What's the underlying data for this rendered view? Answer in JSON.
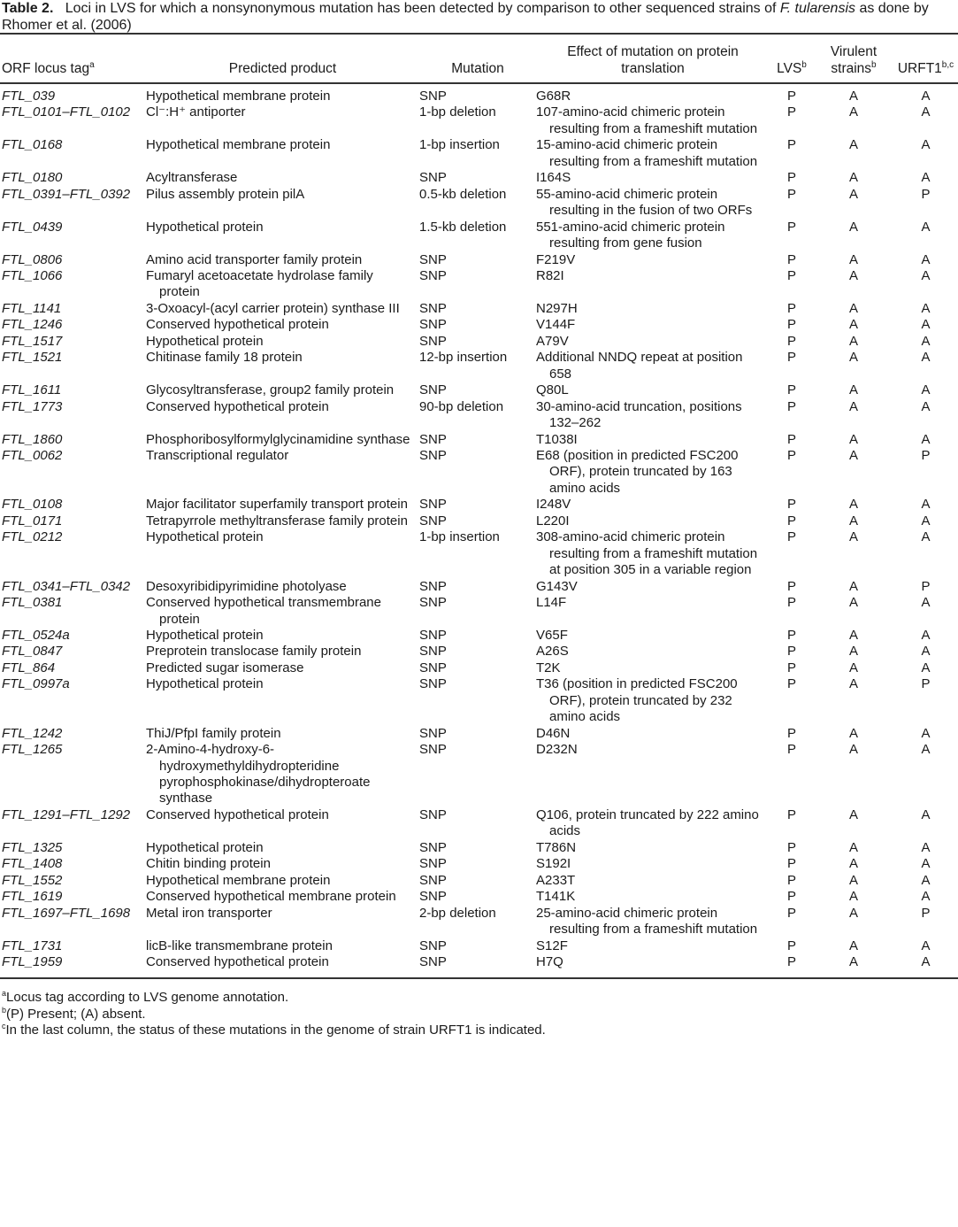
{
  "caption": {
    "label": "Table 2.",
    "text_before": "Loci in LVS for which a nonsynonymous mutation has been detected by comparison to other sequenced strains of ",
    "species": "F. tularensis",
    "text_after": " as done by Rhomer et al. (2006)"
  },
  "headers": {
    "orf": "ORF locus tag",
    "orf_sup": "a",
    "product": "Predicted product",
    "mutation": "Mutation",
    "effect": "Effect of mutation on protein translation",
    "lvs": "LVS",
    "lvs_sup": "b",
    "virulent": "Virulent strains",
    "virulent_sup": "b",
    "urft1": "URFT1",
    "urft1_sup": "b,c"
  },
  "rows": [
    [
      "FTL_039",
      "Hypothetical membrane protein",
      "SNP",
      "G68R",
      "P",
      "A",
      "A"
    ],
    [
      "FTL_0101–FTL_0102",
      "Cl⁻:H⁺ antiporter",
      "1-bp deletion",
      "107-amino-acid chimeric protein resulting from a frameshift mutation",
      "P",
      "A",
      "A"
    ],
    [
      "FTL_0168",
      "Hypothetical membrane protein",
      "1-bp insertion",
      "15-amino-acid chimeric protein resulting from a frameshift mutation",
      "P",
      "A",
      "A"
    ],
    [
      "FTL_0180",
      "Acyltransferase",
      "SNP",
      "I164S",
      "P",
      "A",
      "A"
    ],
    [
      "FTL_0391–FTL_0392",
      "Pilus assembly protein pilA",
      "0.5-kb deletion",
      "55-amino-acid chimeric protein resulting in the fusion of two ORFs",
      "P",
      "A",
      "P"
    ],
    [
      "FTL_0439",
      "Hypothetical protein",
      "1.5-kb deletion",
      "551-amino-acid chimeric protein resulting from gene fusion",
      "P",
      "A",
      "A"
    ],
    [
      "FTL_0806",
      "Amino acid transporter family protein",
      "SNP",
      "F219V",
      "P",
      "A",
      "A"
    ],
    [
      "FTL_1066",
      "Fumaryl acetoacetate hydrolase family protein",
      "SNP",
      "R82I",
      "P",
      "A",
      "A"
    ],
    [
      "FTL_1141",
      "3-Oxoacyl-(acyl carrier protein) synthase III",
      "SNP",
      "N297H",
      "P",
      "A",
      "A"
    ],
    [
      "FTL_1246",
      "Conserved hypothetical protein",
      "SNP",
      "V144F",
      "P",
      "A",
      "A"
    ],
    [
      "FTL_1517",
      "Hypothetical protein",
      "SNP",
      "A79V",
      "P",
      "A",
      "A"
    ],
    [
      "FTL_1521",
      "Chitinase family 18 protein",
      "12-bp insertion",
      "Additional NNDQ repeat at position 658",
      "P",
      "A",
      "A"
    ],
    [
      "FTL_1611",
      "Glycosyltransferase, group2 family protein",
      "SNP",
      "Q80L",
      "P",
      "A",
      "A"
    ],
    [
      "FTL_1773",
      "Conserved hypothetical protein",
      "90-bp deletion",
      "30-amino-acid truncation, positions 132–262",
      "P",
      "A",
      "A"
    ],
    [
      "FTL_1860",
      "Phosphoribosylformylglycinamidine synthase",
      "SNP",
      "T1038I",
      "P",
      "A",
      "A"
    ],
    [
      "FTL_0062",
      "Transcriptional regulator",
      "SNP",
      "E68 (position in predicted FSC200 ORF), protein truncated by 163 amino acids",
      "P",
      "A",
      "P"
    ],
    [
      "FTL_0108",
      "Major facilitator superfamily transport protein",
      "SNP",
      "I248V",
      "P",
      "A",
      "A"
    ],
    [
      "FTL_0171",
      "Tetrapyrrole methyltransferase family protein",
      "SNP",
      "L220I",
      "P",
      "A",
      "A"
    ],
    [
      "FTL_0212",
      "Hypothetical protein",
      "1-bp insertion",
      "308-amino-acid chimeric protein resulting from a frameshift mutation at position 305 in a variable region",
      "P",
      "A",
      "A"
    ],
    [
      "FTL_0341–FTL_0342",
      "Desoxyribidipyrimidine photolyase",
      "SNP",
      "G143V",
      "P",
      "A",
      "P"
    ],
    [
      "FTL_0381",
      "Conserved hypothetical transmembrane protein",
      "SNP",
      "L14F",
      "P",
      "A",
      "A"
    ],
    [
      "FTL_0524a",
      "Hypothetical protein",
      "SNP",
      "V65F",
      "P",
      "A",
      "A"
    ],
    [
      "FTL_0847",
      "Preprotein translocase family protein",
      "SNP",
      "A26S",
      "P",
      "A",
      "A"
    ],
    [
      "FTL_864",
      "Predicted sugar isomerase",
      "SNP",
      "T2K",
      "P",
      "A",
      "A"
    ],
    [
      "FTL_0997a",
      "Hypothetical protein",
      "SNP",
      "T36 (position in predicted FSC200 ORF), protein truncated by 232 amino acids",
      "P",
      "A",
      "P"
    ],
    [
      "FTL_1242",
      "ThiJ/PfpI family protein",
      "SNP",
      "D46N",
      "P",
      "A",
      "A"
    ],
    [
      "FTL_1265",
      "2-Amino-4-hydroxy-6- hydroxymethyldihydropteridine pyrophosphokinase/dihydropteroate synthase",
      "SNP",
      "D232N",
      "P",
      "A",
      "A"
    ],
    [
      "FTL_1291–FTL_1292",
      "Conserved hypothetical protein",
      "SNP",
      "Q106, protein truncated by 222 amino acids",
      "P",
      "A",
      "A"
    ],
    [
      "FTL_1325",
      "Hypothetical protein",
      "SNP",
      "T786N",
      "P",
      "A",
      "A"
    ],
    [
      "FTL_1408",
      "Chitin binding protein",
      "SNP",
      "S192I",
      "P",
      "A",
      "A"
    ],
    [
      "FTL_1552",
      "Hypothetical membrane protein",
      "SNP",
      "A233T",
      "P",
      "A",
      "A"
    ],
    [
      "FTL_1619",
      "Conserved hypothetical membrane protein",
      "SNP",
      "T141K",
      "P",
      "A",
      "A"
    ],
    [
      "FTL_1697–FTL_1698",
      "Metal iron transporter",
      "2-bp deletion",
      "25-amino-acid chimeric protein resulting from a frameshift mutation",
      "P",
      "A",
      "P"
    ],
    [
      "FTL_1731",
      "licB-like transmembrane protein",
      "SNP",
      "S12F",
      "P",
      "A",
      "A"
    ],
    [
      "FTL_1959",
      "Conserved hypothetical protein",
      "SNP",
      "H7Q",
      "P",
      "A",
      "A"
    ]
  ],
  "footnotes": [
    {
      "mark": "a",
      "text": "Locus tag according to LVS genome annotation."
    },
    {
      "mark": "b",
      "text": "(P) Present; (A) absent."
    },
    {
      "mark": "c",
      "text": "In the last column, the status of these mutations in the genome of strain URFT1 is indicated."
    }
  ]
}
